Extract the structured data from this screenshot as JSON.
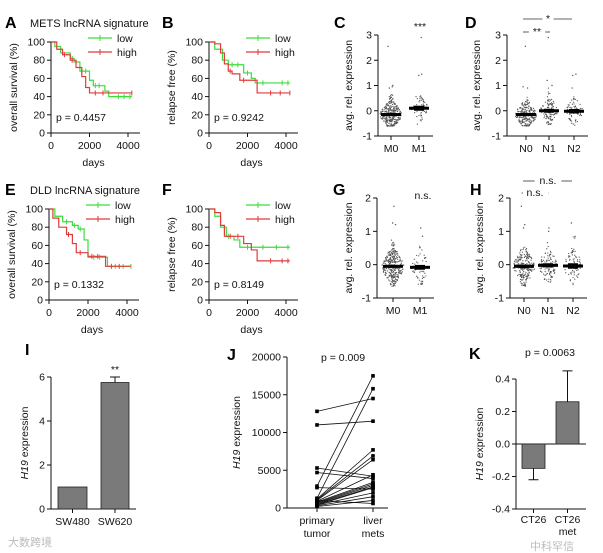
{
  "colors": {
    "low": "#3ddc3d",
    "high": "#e23b3b",
    "bar": "#7a7a7a",
    "dot": "#555555"
  },
  "watermarks": [
    "大数跨境",
    "中科罕信"
  ],
  "chart_data": [
    {
      "id": "A",
      "type": "line",
      "letter": "A",
      "title": "METS lncRNA signature",
      "ylabel": "overall survival (%)",
      "xlabel": "days",
      "p": "p = 0.4457",
      "ylim": [
        0,
        100
      ],
      "yticks": [
        "0",
        "20",
        "40",
        "60",
        "80",
        "100"
      ],
      "xlim": [
        0,
        4000
      ],
      "xticks": [
        "0",
        "2000",
        "4000"
      ],
      "series": [
        {
          "name": "low",
          "points": [
            [
              0,
              100
            ],
            [
              200,
              95
            ],
            [
              500,
              88
            ],
            [
              1000,
              82
            ],
            [
              1200,
              78
            ],
            [
              1500,
              68
            ],
            [
              2000,
              58
            ],
            [
              2200,
              52
            ],
            [
              2800,
              46
            ],
            [
              3000,
              40
            ],
            [
              4200,
              40
            ]
          ],
          "censored": [
            [
              600,
              88
            ],
            [
              1100,
              82
            ],
            [
              1600,
              68
            ],
            [
              1800,
              68
            ],
            [
              2300,
              52
            ],
            [
              2500,
              52
            ],
            [
              3500,
              40
            ],
            [
              3800,
              40
            ],
            [
              4100,
              40
            ]
          ]
        },
        {
          "name": "high",
          "points": [
            [
              0,
              100
            ],
            [
              300,
              92
            ],
            [
              600,
              86
            ],
            [
              1000,
              80
            ],
            [
              1300,
              72
            ],
            [
              1600,
              62
            ],
            [
              1800,
              50
            ],
            [
              2000,
              44
            ],
            [
              4200,
              44
            ]
          ],
          "censored": [
            [
              700,
              86
            ],
            [
              1100,
              80
            ],
            [
              2300,
              44
            ],
            [
              2700,
              44
            ],
            [
              4200,
              44
            ]
          ]
        }
      ]
    },
    {
      "id": "B",
      "type": "line",
      "letter": "B",
      "ylabel": "relapse free (%)",
      "xlabel": "days",
      "p": "p = 0.9242",
      "ylim": [
        0,
        100
      ],
      "yticks": [
        "0",
        "20",
        "40",
        "60",
        "80",
        "100"
      ],
      "xlim": [
        0,
        4000
      ],
      "xticks": [
        "0",
        "2000",
        "4000"
      ],
      "series": [
        {
          "name": "low",
          "points": [
            [
              0,
              100
            ],
            [
              300,
              92
            ],
            [
              700,
              80
            ],
            [
              1000,
              75
            ],
            [
              1700,
              75
            ],
            [
              1800,
              66
            ],
            [
              2200,
              60
            ],
            [
              2400,
              55
            ],
            [
              4200,
              55
            ]
          ],
          "censored": [
            [
              1200,
              75
            ],
            [
              1500,
              75
            ],
            [
              2000,
              66
            ],
            [
              2800,
              55
            ],
            [
              3800,
              55
            ],
            [
              4100,
              55
            ]
          ]
        },
        {
          "name": "high",
          "points": [
            [
              0,
              100
            ],
            [
              300,
              98
            ],
            [
              600,
              88
            ],
            [
              800,
              76
            ],
            [
              1000,
              68
            ],
            [
              1200,
              65
            ],
            [
              1600,
              58
            ],
            [
              2300,
              58
            ],
            [
              2500,
              44
            ],
            [
              4200,
              44
            ]
          ],
          "censored": [
            [
              1100,
              68
            ],
            [
              1800,
              58
            ],
            [
              3200,
              44
            ],
            [
              3700,
              44
            ],
            [
              4200,
              44
            ]
          ]
        }
      ]
    },
    {
      "id": "C",
      "type": "scatter",
      "letter": "C",
      "ylabel": "avg. rel. expression",
      "ylim": [
        -1,
        3
      ],
      "yticks": [
        "-1",
        "0",
        "1",
        "2",
        "3"
      ],
      "sig": [
        "***"
      ],
      "groups": [
        {
          "label": "M0",
          "n": 300,
          "mean": -0.15,
          "sem": 0.03,
          "min": -0.62,
          "sd": 0.28,
          "outliers": [
            2.55,
            1.0,
            0.95,
            0.9
          ]
        },
        {
          "label": "M1",
          "n": 55,
          "mean": 0.1,
          "sem": 0.07,
          "min": -0.6,
          "sd": 0.3,
          "outliers": [
            2.9,
            1.45,
            1.4
          ]
        }
      ]
    },
    {
      "id": "D",
      "type": "scatter",
      "letter": "D",
      "ylabel": "avg. rel. expression",
      "ylim": [
        -1,
        3
      ],
      "yticks": [
        "-1",
        "0",
        "1",
        "2",
        "3"
      ],
      "sig": [
        "*",
        "**"
      ],
      "groups": [
        {
          "label": "N0",
          "n": 220,
          "mean": -0.15,
          "sem": 0.03,
          "min": -0.62,
          "sd": 0.28,
          "outliers": [
            2.55,
            0.95,
            0.9
          ]
        },
        {
          "label": "N1",
          "n": 110,
          "mean": 0.0,
          "sem": 0.05,
          "min": -0.55,
          "sd": 0.3,
          "outliers": [
            2.9,
            1.2,
            1.0
          ]
        },
        {
          "label": "N2",
          "n": 70,
          "mean": -0.02,
          "sem": 0.06,
          "min": -0.6,
          "sd": 0.3,
          "outliers": [
            1.45,
            1.4,
            0.9
          ]
        }
      ]
    },
    {
      "id": "E",
      "type": "line",
      "letter": "E",
      "title": "DLD lncRNA signature",
      "ylabel": "overall survival (%)",
      "xlabel": "days",
      "p": "p = 0.1332",
      "ylim": [
        0,
        100
      ],
      "yticks": [
        "0",
        "20",
        "40",
        "60",
        "80",
        "100"
      ],
      "xlim": [
        0,
        4000
      ],
      "xticks": [
        "0",
        "2000",
        "4000"
      ],
      "series": [
        {
          "name": "low",
          "points": [
            [
              0,
              100
            ],
            [
              300,
              92
            ],
            [
              700,
              86
            ],
            [
              1200,
              82
            ],
            [
              1500,
              78
            ],
            [
              1800,
              66
            ],
            [
              2000,
              47
            ],
            [
              2800,
              47
            ],
            [
              3000,
              37
            ],
            [
              4200,
              37
            ]
          ],
          "censored": [
            [
              900,
              86
            ],
            [
              1300,
              82
            ],
            [
              1600,
              78
            ],
            [
              2300,
              47
            ],
            [
              2600,
              47
            ],
            [
              3400,
              37
            ],
            [
              3800,
              37
            ],
            [
              4200,
              37
            ]
          ]
        },
        {
          "name": "high",
          "points": [
            [
              0,
              100
            ],
            [
              200,
              90
            ],
            [
              500,
              80
            ],
            [
              900,
              72
            ],
            [
              1200,
              62
            ],
            [
              1400,
              52
            ],
            [
              1800,
              52
            ],
            [
              2000,
              48
            ],
            [
              2700,
              48
            ],
            [
              2900,
              37
            ],
            [
              4200,
              37
            ]
          ],
          "censored": [
            [
              1000,
              72
            ],
            [
              1600,
              52
            ],
            [
              2200,
              48
            ],
            [
              2500,
              48
            ],
            [
              3200,
              37
            ],
            [
              3600,
              37
            ]
          ]
        }
      ]
    },
    {
      "id": "F",
      "type": "line",
      "letter": "F",
      "ylabel": "relapse free (%)",
      "xlabel": "days",
      "p": "p = 0.8149",
      "ylim": [
        0,
        100
      ],
      "yticks": [
        "0",
        "20",
        "40",
        "60",
        "80",
        "100"
      ],
      "xlim": [
        0,
        4000
      ],
      "xticks": [
        "0",
        "2000",
        "4000"
      ],
      "series": [
        {
          "name": "low",
          "points": [
            [
              0,
              100
            ],
            [
              300,
              92
            ],
            [
              600,
              80
            ],
            [
              900,
              70
            ],
            [
              1300,
              66
            ],
            [
              1600,
              58
            ],
            [
              4200,
              58
            ]
          ],
          "censored": [
            [
              1000,
              70
            ],
            [
              2000,
              58
            ],
            [
              2800,
              58
            ],
            [
              3500,
              58
            ],
            [
              4100,
              58
            ]
          ]
        },
        {
          "name": "high",
          "points": [
            [
              0,
              100
            ],
            [
              300,
              96
            ],
            [
              600,
              82
            ],
            [
              800,
              70
            ],
            [
              1400,
              70
            ],
            [
              1800,
              62
            ],
            [
              2200,
              55
            ],
            [
              2500,
              43
            ],
            [
              4200,
              43
            ]
          ],
          "censored": [
            [
              1100,
              70
            ],
            [
              1500,
              70
            ],
            [
              3200,
              43
            ],
            [
              3800,
              43
            ],
            [
              4100,
              43
            ]
          ]
        }
      ]
    },
    {
      "id": "G",
      "type": "scatter",
      "letter": "G",
      "ylabel": "avg. rel. expression",
      "ylim": [
        -1,
        2
      ],
      "yticks": [
        "-1",
        "0",
        "1",
        "2"
      ],
      "sig": [
        "n.s."
      ],
      "groups": [
        {
          "label": "M0",
          "n": 320,
          "mean": -0.05,
          "sem": 0.02,
          "min": -0.65,
          "sd": 0.3,
          "outliers": [
            1.75,
            1.25,
            1.2
          ]
        },
        {
          "label": "M1",
          "n": 60,
          "mean": -0.08,
          "sem": 0.05,
          "min": -0.6,
          "sd": 0.3,
          "outliers": [
            1.1,
            0.85
          ]
        }
      ]
    },
    {
      "id": "H",
      "type": "scatter",
      "letter": "H",
      "ylabel": "avg. rel. expression",
      "ylim": [
        -1,
        2
      ],
      "yticks": [
        "-1",
        "0",
        "1",
        "2"
      ],
      "sig": [
        "n.s.",
        "n.s."
      ],
      "groups": [
        {
          "label": "N0",
          "n": 220,
          "mean": -0.05,
          "sem": 0.03,
          "min": -0.65,
          "sd": 0.3,
          "outliers": [
            1.75,
            1.2,
            1.1
          ]
        },
        {
          "label": "N1",
          "n": 100,
          "mean": -0.02,
          "sem": 0.04,
          "min": -0.55,
          "sd": 0.3,
          "outliers": [
            1.1,
            1.0
          ]
        },
        {
          "label": "N2",
          "n": 70,
          "mean": -0.04,
          "sem": 0.06,
          "min": -0.62,
          "sd": 0.3,
          "outliers": [
            1.25,
            0.85,
            0.8
          ]
        }
      ]
    },
    {
      "id": "I",
      "type": "bar",
      "letter": "I",
      "ylabel_gene": "H19",
      "ylabel": "expression",
      "ylim": [
        0,
        6
      ],
      "yticks": [
        "0",
        "2",
        "4",
        "6"
      ],
      "categories": [
        "SW480",
        "SW620"
      ],
      "values": [
        1.0,
        5.75
      ],
      "errors": [
        0,
        0.25
      ],
      "sig": [
        "",
        "**"
      ]
    },
    {
      "id": "J",
      "type": "line",
      "letter": "J",
      "ylabel_gene": "H19",
      "ylabel": "expression",
      "ylim": [
        0,
        20000
      ],
      "yticks": [
        "0",
        "5000",
        "10000",
        "15000",
        "20000"
      ],
      "p": "p = 0.009",
      "categories": [
        [
          "primary",
          "tumor"
        ],
        [
          "liver",
          "mets"
        ]
      ],
      "pairs": [
        [
          12800,
          14500
        ],
        [
          11000,
          11500
        ],
        [
          5300,
          4200
        ],
        [
          4700,
          3900
        ],
        [
          2900,
          17500
        ],
        [
          2700,
          2500
        ],
        [
          1300,
          15800
        ],
        [
          1200,
          7700
        ],
        [
          1100,
          6900
        ],
        [
          1000,
          6400
        ],
        [
          900,
          4400
        ],
        [
          800,
          3400
        ],
        [
          700,
          3200
        ],
        [
          600,
          3000
        ],
        [
          500,
          2800
        ],
        [
          400,
          2000
        ],
        [
          300,
          1500
        ],
        [
          200,
          1000
        ],
        [
          1000,
          600
        ],
        [
          400,
          2700
        ]
      ]
    },
    {
      "id": "K",
      "type": "bar",
      "letter": "K",
      "ylabel_gene": "H19",
      "ylabel": "expression",
      "ylim": [
        -0.4,
        0.4
      ],
      "yticks": [
        "-0.4",
        "-0.2",
        "0.0",
        "0.2",
        "0.4"
      ],
      "p": "p = 0.0063",
      "categories": [
        [
          "CT26"
        ],
        [
          "CT26",
          "met"
        ]
      ],
      "values": [
        -0.15,
        0.26
      ],
      "errors": [
        0.07,
        0.19
      ]
    }
  ]
}
